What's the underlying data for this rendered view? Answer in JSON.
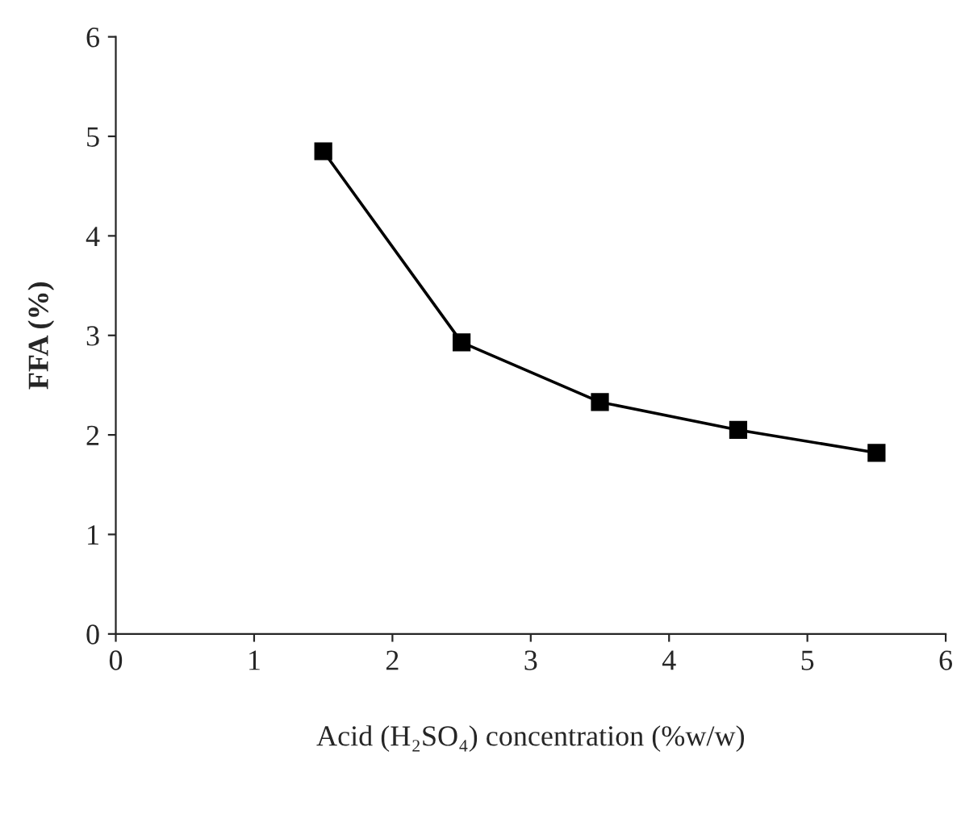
{
  "chart_data": {
    "type": "line",
    "xlabel": "Acid (H₂SO₄) concentration (%w/w)",
    "ylabel": "FFA (%)",
    "x": [
      1.5,
      2.5,
      3.5,
      4.5,
      5.5
    ],
    "series": [
      {
        "color": "#000000",
        "values": [
          4.85,
          2.93,
          2.33,
          2.05,
          1.82
        ]
      }
    ],
    "xlim": [
      0,
      6
    ],
    "ylim": [
      0,
      6
    ],
    "xticks": [
      0,
      1,
      2,
      3,
      4,
      5,
      6
    ],
    "yticks": [
      0,
      1,
      2,
      3,
      4,
      5,
      6
    ],
    "marker": "square",
    "line_style": "solid",
    "grid": false,
    "legend": false
  }
}
